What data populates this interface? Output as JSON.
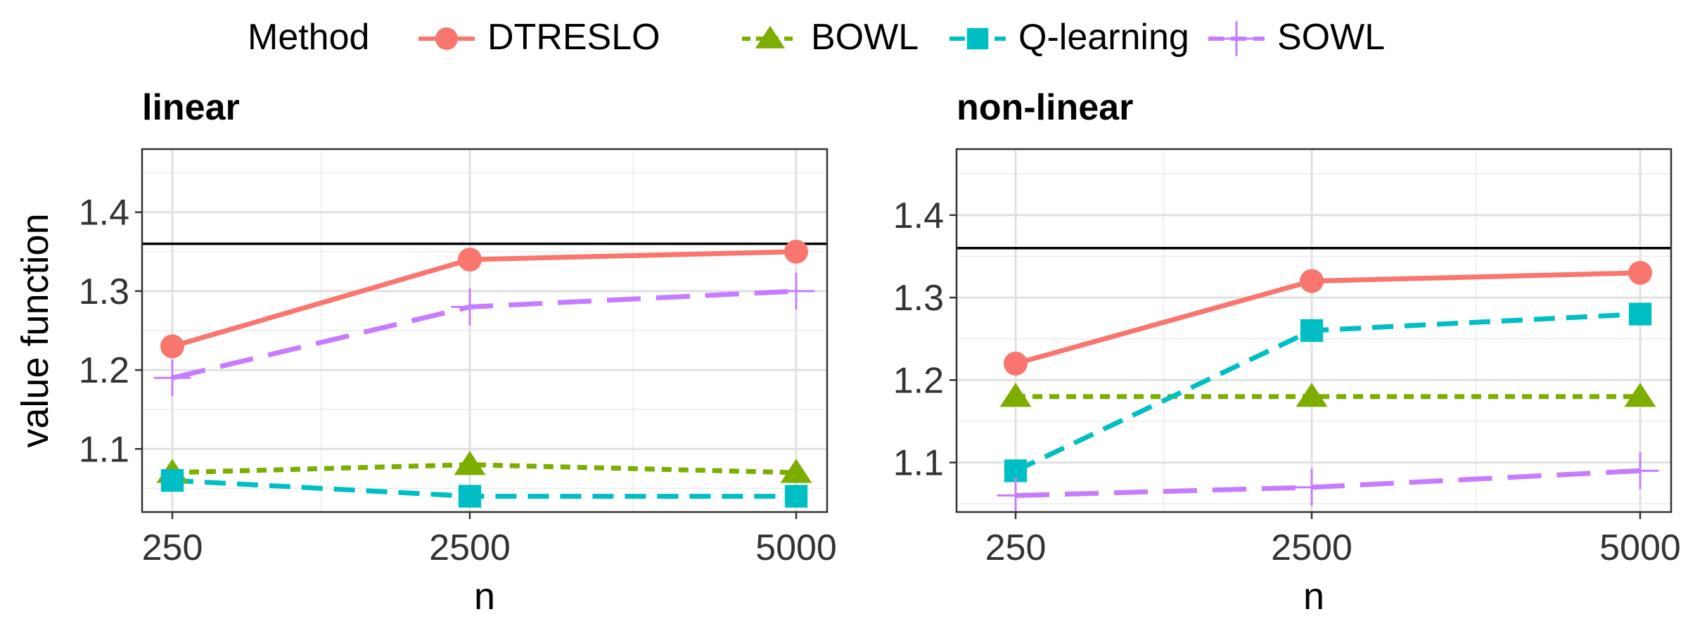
{
  "legend": {
    "title": "Method",
    "position": "top",
    "items": [
      {
        "name": "DTRESLO",
        "color": "#F8766D",
        "shape": "circle",
        "linetype": "solid"
      },
      {
        "name": "BOWL",
        "color": "#7CAE00",
        "shape": "triangle",
        "linetype": "dotted"
      },
      {
        "name": "Q-learning",
        "color": "#00BFC4",
        "shape": "square",
        "linetype": "dashed"
      },
      {
        "name": "SOWL",
        "color": "#C77CFF",
        "shape": "plus",
        "linetype": "longdash"
      }
    ]
  },
  "chart_data": [
    {
      "type": "line",
      "title": "linear",
      "xlabel": "n",
      "ylabel": "value function",
      "categories": [
        "250",
        "2500",
        "5000"
      ],
      "ylim": [
        1.02,
        1.48
      ],
      "yticks": [
        1.1,
        1.2,
        1.3,
        1.4
      ],
      "reference_line": 1.36,
      "grid": true,
      "series": [
        {
          "name": "DTRESLO",
          "values": [
            1.23,
            1.34,
            1.35
          ]
        },
        {
          "name": "BOWL",
          "values": [
            1.07,
            1.08,
            1.07
          ]
        },
        {
          "name": "Q-learning",
          "values": [
            1.06,
            1.04,
            1.04
          ]
        },
        {
          "name": "SOWL",
          "values": [
            1.19,
            1.28,
            1.3
          ]
        }
      ]
    },
    {
      "type": "line",
      "title": "non-linear",
      "xlabel": "n",
      "ylabel": "",
      "categories": [
        "250",
        "2500",
        "5000"
      ],
      "ylim": [
        1.04,
        1.48
      ],
      "yticks": [
        1.1,
        1.2,
        1.3,
        1.4
      ],
      "reference_line": 1.36,
      "grid": true,
      "series": [
        {
          "name": "DTRESLO",
          "values": [
            1.22,
            1.32,
            1.33
          ]
        },
        {
          "name": "BOWL",
          "values": [
            1.18,
            1.18,
            1.18
          ]
        },
        {
          "name": "Q-learning",
          "values": [
            1.09,
            1.26,
            1.28
          ]
        },
        {
          "name": "SOWL",
          "values": [
            1.06,
            1.07,
            1.09
          ]
        }
      ]
    }
  ]
}
